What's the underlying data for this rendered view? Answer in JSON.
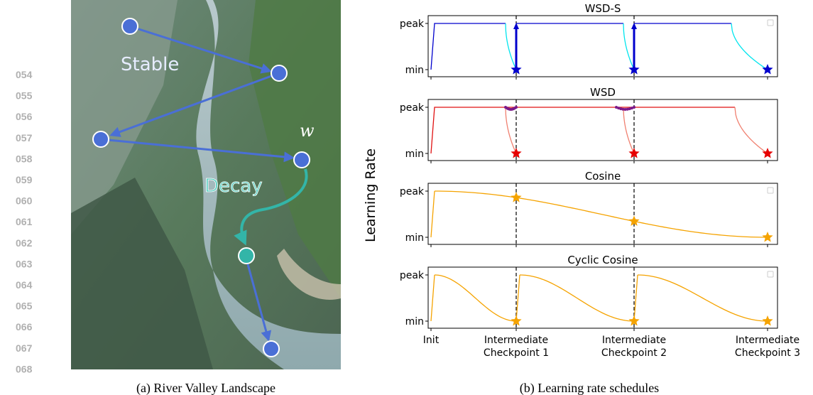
{
  "line_numbers": [
    "054",
    "055",
    "056",
    "057",
    "058",
    "059",
    "060",
    "061",
    "062",
    "063",
    "064",
    "065",
    "066",
    "067",
    "068"
  ],
  "panel_a": {
    "labels": {
      "stable": "Stable",
      "decay": "Decay",
      "w": "w"
    },
    "caption": "(a) River Valley Landscape"
  },
  "panel_b": {
    "y_label": "Learning Rate",
    "y_ticks": [
      "peak",
      "min"
    ],
    "x_ticks": [
      [
        "Init"
      ],
      [
        "Intermediate",
        "Checkpoint 1"
      ],
      [
        "Intermediate",
        "Checkpoint 2"
      ],
      [
        "Intermediate",
        "Checkpoint 3"
      ]
    ],
    "subplots": [
      {
        "title": "WSD-S"
      },
      {
        "title": "WSD"
      },
      {
        "title": "Cosine"
      },
      {
        "title": "Cyclic Cosine"
      }
    ],
    "caption": "(b) Learning rate schedules"
  }
}
